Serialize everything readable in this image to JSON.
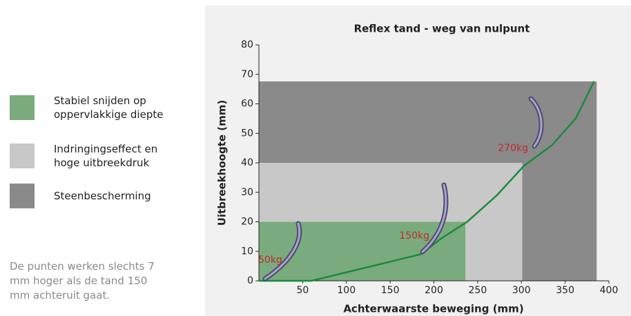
{
  "chart_data": {
    "type": "line",
    "title": "Reflex tand - weg van nulpunt",
    "x_label": "Achterwaarste beweging (mm)",
    "y_label": "Uitbreekhoogte (mm)",
    "xlim": [
      0,
      400
    ],
    "xticks": [
      50,
      100,
      150,
      200,
      250,
      300,
      350,
      400
    ],
    "ylim": [
      0,
      80
    ],
    "yticks": [
      0,
      10,
      20,
      30,
      40,
      50,
      60,
      70,
      80
    ],
    "zones": [
      {
        "name": "Steenbescherming",
        "color": "#8a8a8a",
        "x": [
          0,
          386
        ],
        "y": [
          0,
          67.6
        ]
      },
      {
        "name": "Indringingseffect en hoge uitbreekdruk",
        "color": "#c8c8c8",
        "x": [
          0,
          301
        ],
        "y": [
          0,
          40
        ]
      },
      {
        "name": "Stabiel snijden op oppervlakkige diepte",
        "color": "#7aab7e",
        "x": [
          0,
          236
        ],
        "y": [
          0,
          20
        ]
      }
    ],
    "series": [
      {
        "name": "Reflex tand",
        "color": "#1a8a3a",
        "x": [
          0,
          60,
          185,
          209,
          238,
          272,
          303,
          335,
          362,
          383
        ],
        "values": [
          0,
          0,
          9,
          14.5,
          20,
          29,
          39,
          46,
          55,
          67.6
        ]
      }
    ],
    "annotations": [
      "50kg",
      "150kg",
      "270kg"
    ],
    "note": "De punten werken slechts 7 mm hoger als de tand 150 mm achteruit gaat."
  }
}
